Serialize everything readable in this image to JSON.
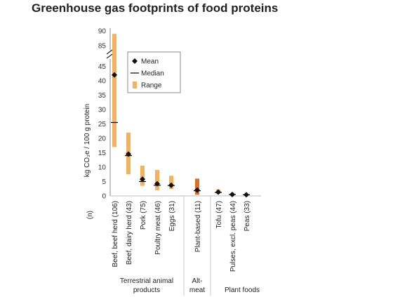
{
  "chart_data": {
    "type": "range",
    "title": "Greenhouse gas footprints of food proteins",
    "ylabel": "kg CO₂e / 100 g protein",
    "n_label": "(n)",
    "y_ticks_lower": [
      0,
      5,
      10,
      15,
      20,
      25,
      30,
      35,
      40,
      45
    ],
    "y_ticks_upper": [
      85,
      90
    ],
    "axis_break": [
      47,
      83
    ],
    "categories": [
      {
        "label": "Beef, beef herd (106)",
        "min": 17,
        "max": 89,
        "mean": 42,
        "median": 25.5,
        "color": "#f4b25f"
      },
      {
        "label": "Beef, dairy herd (43)",
        "min": 7.5,
        "max": 22,
        "mean": 14.5,
        "median": 14,
        "color": "#f4b25f"
      },
      {
        "label": "Pork (75)",
        "min": 3.5,
        "max": 10.5,
        "mean": 5.8,
        "median": 5,
        "color": "#f4b25f"
      },
      {
        "label": "Poultry meat (46)",
        "min": 2,
        "max": 9,
        "mean": 4.2,
        "median": 3.7,
        "color": "#f4b25f"
      },
      {
        "label": "Eggs (31)",
        "min": 2.4,
        "max": 7,
        "mean": 3.7,
        "median": 3.6,
        "color": "#f4b25f"
      },
      {
        "label": "Plant-based (11)",
        "min": 0.4,
        "max": 6,
        "mean": 2,
        "median": 1.8,
        "color": "#d8702a"
      },
      {
        "label": "Tofu (47)",
        "min": 0.7,
        "max": 2.3,
        "mean": 1.3,
        "median": 1.2,
        "color": "#f4b25f"
      },
      {
        "label": "Pulses, excl. peas (44)",
        "min": 0.3,
        "max": 1,
        "mean": 0.5,
        "median": 0.5,
        "color": "#f4b25f"
      },
      {
        "label": "Peas (33)",
        "min": 0.2,
        "max": 0.7,
        "mean": 0.4,
        "median": 0.4,
        "color": "#f4b25f"
      }
    ],
    "groups": [
      {
        "label": "Terrestrial animal products",
        "lines": [
          "Terrestrial animal",
          "products"
        ]
      },
      {
        "label": "Alt-meat",
        "lines": [
          "Alt-",
          "meat"
        ]
      },
      {
        "label": "Plant foods",
        "lines": [
          "Plant foods"
        ]
      }
    ],
    "legend": {
      "position": "top-left",
      "items": [
        {
          "label": "Mean",
          "marker": "diamond"
        },
        {
          "label": "Median",
          "marker": "line"
        },
        {
          "label": "Range",
          "marker": "square"
        }
      ]
    },
    "colors": {
      "range": "#f4b25f",
      "alt_range": "#d8702a",
      "marker": "#111111",
      "separator": "#c8c8c8",
      "axis": "#888888"
    }
  }
}
